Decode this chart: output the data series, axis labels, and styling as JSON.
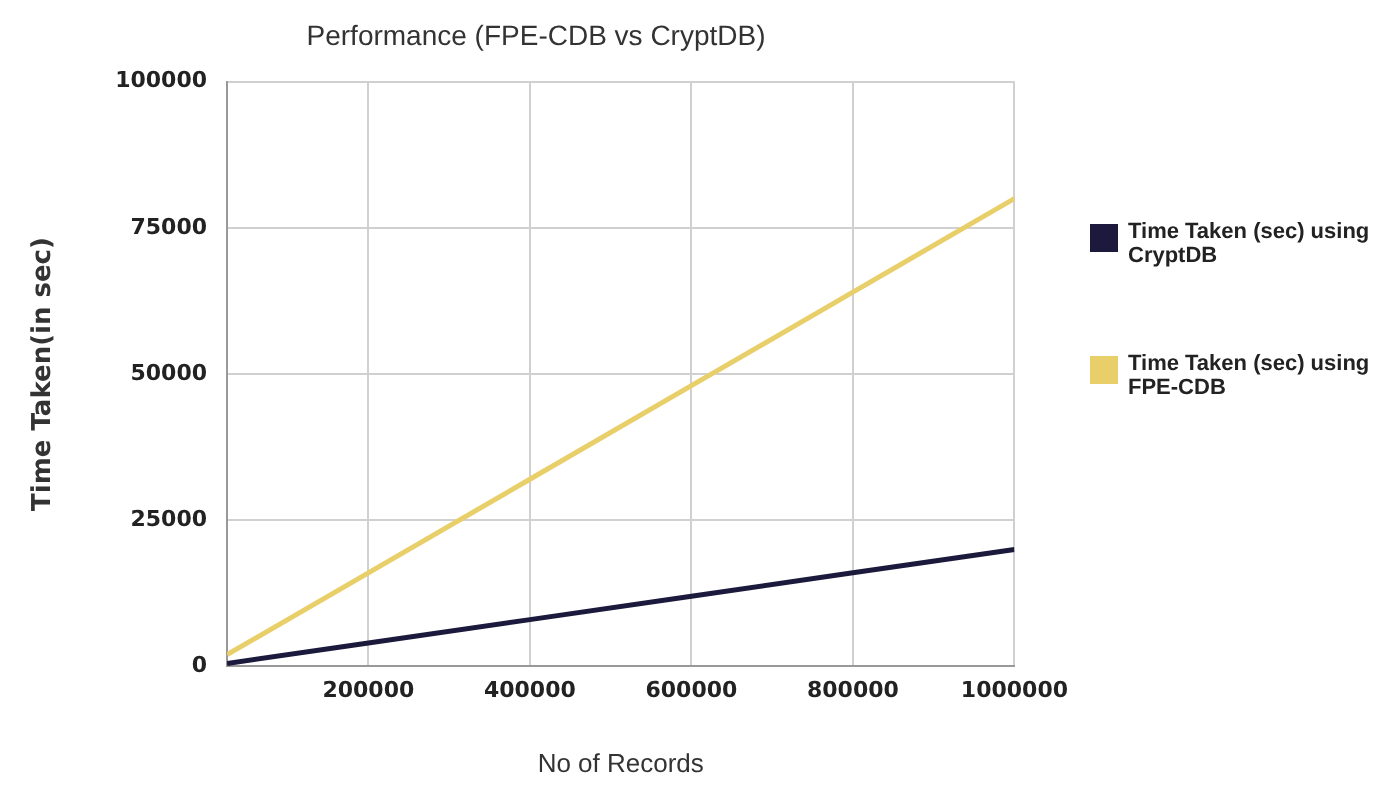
{
  "chart_data": {
    "type": "line",
    "title": "Performance (FPE-CDB vs CryptDB)",
    "xlabel": "No of Records",
    "ylabel": "Time Taken(in sec)",
    "x": [
      25000,
      200000,
      400000,
      600000,
      800000,
      1000000
    ],
    "series": [
      {
        "name": "Time Taken (sec) using CryptDB",
        "color": "#1c1a3c",
        "values": [
          500,
          4000,
          8000,
          12000,
          16000,
          20000
        ]
      },
      {
        "name": "Time Taken (sec) using FPE-CDB",
        "color": "#e8cf6a",
        "values": [
          2000,
          16000,
          32000,
          48000,
          64000,
          80000
        ]
      }
    ],
    "xlim": [
      25000,
      1000000
    ],
    "xticks": [
      200000,
      400000,
      600000,
      800000,
      1000000
    ],
    "ylim": [
      0,
      100000
    ],
    "yticks": [
      0,
      25000,
      50000,
      75000,
      100000
    ],
    "grid": true,
    "legend": "right",
    "marker": "none",
    "line_style": "solid"
  }
}
